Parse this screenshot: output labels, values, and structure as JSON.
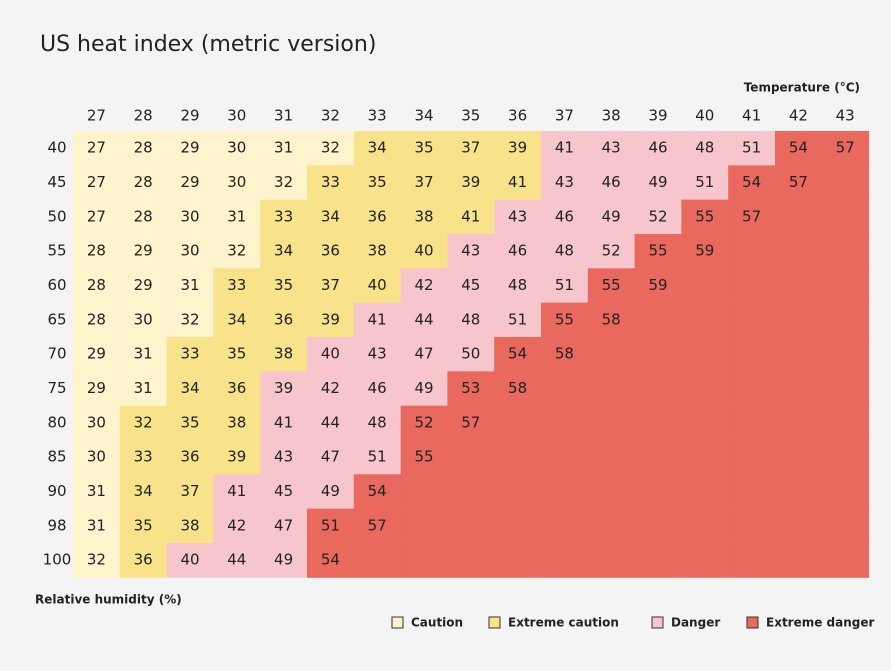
{
  "header": {
    "title": "US heat index (metric version)"
  },
  "table": {
    "column_label": "Temperature (°C)",
    "row_label": "Relative humidity (%)",
    "columns": [
      27,
      28,
      29,
      30,
      31,
      32,
      33,
      34,
      35,
      36,
      37,
      38,
      39,
      40,
      41,
      42,
      43
    ],
    "rows": [
      {
        "label": 40,
        "values": [
          27,
          28,
          29,
          30,
          31,
          32,
          34,
          35,
          37,
          39,
          41,
          43,
          46,
          48,
          51,
          54,
          57
        ],
        "levels": [
          0,
          0,
          0,
          0,
          0,
          0,
          1,
          1,
          1,
          1,
          2,
          2,
          2,
          2,
          2,
          3,
          3
        ]
      },
      {
        "label": 45,
        "values": [
          27,
          28,
          29,
          30,
          32,
          33,
          35,
          37,
          39,
          41,
          43,
          46,
          49,
          51,
          54,
          57,
          null
        ],
        "levels": [
          0,
          0,
          0,
          0,
          0,
          1,
          1,
          1,
          1,
          1,
          2,
          2,
          2,
          2,
          3,
          3,
          3
        ]
      },
      {
        "label": 50,
        "values": [
          27,
          28,
          30,
          31,
          33,
          34,
          36,
          38,
          41,
          43,
          46,
          49,
          52,
          55,
          57,
          null,
          null
        ],
        "levels": [
          0,
          0,
          0,
          0,
          1,
          1,
          1,
          1,
          1,
          2,
          2,
          2,
          2,
          3,
          3,
          3,
          3
        ]
      },
      {
        "label": 55,
        "values": [
          28,
          29,
          30,
          32,
          34,
          36,
          38,
          40,
          43,
          46,
          48,
          52,
          55,
          59,
          null,
          null,
          null
        ],
        "levels": [
          0,
          0,
          0,
          0,
          1,
          1,
          1,
          1,
          2,
          2,
          2,
          2,
          3,
          3,
          3,
          3,
          3
        ]
      },
      {
        "label": 60,
        "values": [
          28,
          29,
          31,
          33,
          35,
          37,
          40,
          42,
          45,
          48,
          51,
          55,
          59,
          null,
          null,
          null,
          null
        ],
        "levels": [
          0,
          0,
          0,
          1,
          1,
          1,
          1,
          2,
          2,
          2,
          2,
          3,
          3,
          3,
          3,
          3,
          3
        ]
      },
      {
        "label": 65,
        "values": [
          28,
          30,
          32,
          34,
          36,
          39,
          41,
          44,
          48,
          51,
          55,
          58,
          null,
          null,
          null,
          null,
          null
        ],
        "levels": [
          0,
          0,
          0,
          1,
          1,
          1,
          2,
          2,
          2,
          2,
          3,
          3,
          3,
          3,
          3,
          3,
          3
        ]
      },
      {
        "label": 70,
        "values": [
          29,
          31,
          33,
          35,
          38,
          40,
          43,
          47,
          50,
          54,
          58,
          null,
          null,
          null,
          null,
          null,
          null
        ],
        "levels": [
          0,
          0,
          1,
          1,
          1,
          2,
          2,
          2,
          2,
          3,
          3,
          3,
          3,
          3,
          3,
          3,
          3
        ]
      },
      {
        "label": 75,
        "values": [
          29,
          31,
          34,
          36,
          39,
          42,
          46,
          49,
          53,
          58,
          null,
          null,
          null,
          null,
          null,
          null,
          null
        ],
        "levels": [
          0,
          0,
          1,
          1,
          2,
          2,
          2,
          2,
          3,
          3,
          3,
          3,
          3,
          3,
          3,
          3,
          3
        ]
      },
      {
        "label": 80,
        "values": [
          30,
          32,
          35,
          38,
          41,
          44,
          48,
          52,
          57,
          null,
          null,
          null,
          null,
          null,
          null,
          null,
          null
        ],
        "levels": [
          0,
          1,
          1,
          1,
          2,
          2,
          2,
          3,
          3,
          3,
          3,
          3,
          3,
          3,
          3,
          3,
          3
        ]
      },
      {
        "label": 85,
        "values": [
          30,
          33,
          36,
          39,
          43,
          47,
          51,
          55,
          null,
          null,
          null,
          null,
          null,
          null,
          null,
          null,
          null
        ],
        "levels": [
          0,
          1,
          1,
          1,
          2,
          2,
          2,
          3,
          3,
          3,
          3,
          3,
          3,
          3,
          3,
          3,
          3
        ]
      },
      {
        "label": 90,
        "values": [
          31,
          34,
          37,
          41,
          45,
          49,
          54,
          null,
          null,
          null,
          null,
          null,
          null,
          null,
          null,
          null,
          null
        ],
        "levels": [
          0,
          1,
          1,
          2,
          2,
          2,
          3,
          3,
          3,
          3,
          3,
          3,
          3,
          3,
          3,
          3,
          3
        ]
      },
      {
        "label": 98,
        "values": [
          31,
          35,
          38,
          42,
          47,
          51,
          57,
          null,
          null,
          null,
          null,
          null,
          null,
          null,
          null,
          null,
          null
        ],
        "levels": [
          0,
          1,
          1,
          2,
          2,
          3,
          3,
          3,
          3,
          3,
          3,
          3,
          3,
          3,
          3,
          3,
          3
        ]
      },
      {
        "label": 100,
        "values": [
          32,
          36,
          40,
          44,
          49,
          54,
          null,
          null,
          null,
          null,
          null,
          null,
          null,
          null,
          null,
          null,
          null
        ],
        "levels": [
          0,
          1,
          2,
          2,
          2,
          3,
          3,
          3,
          3,
          3,
          3,
          3,
          3,
          3,
          3,
          3,
          3
        ]
      }
    ]
  },
  "legend": [
    {
      "name": "Caution",
      "color": "#fdf3cd"
    },
    {
      "name": "Extreme caution",
      "color": "#f9e38a"
    },
    {
      "name": "Danger",
      "color": "#f7c6cd"
    },
    {
      "name": "Extreme danger",
      "color": "#e9695f"
    }
  ]
}
